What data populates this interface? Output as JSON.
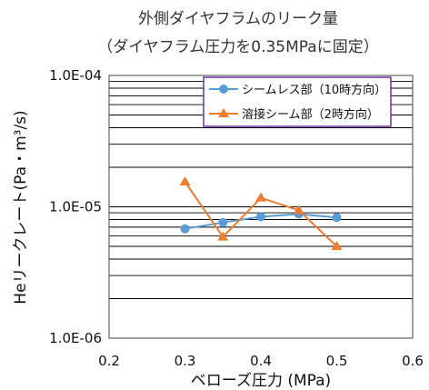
{
  "chart_data": {
    "type": "line",
    "title": "外側ダイヤフラムのリーク量",
    "subtitle": "（ダイヤフラム圧力を0.35MPaに固定）",
    "xlabel": "ベローズ圧力 (MPa)",
    "ylabel": "Heリークレート(Pa・m³/s)",
    "xlim": [
      0.2,
      0.6
    ],
    "ylim": [
      1e-06,
      0.0001
    ],
    "yscale": "log",
    "grid": true,
    "legend_position": "top-right",
    "x_tick_labels": [
      "0.2",
      "0.3",
      "0.4",
      "0.5",
      "0.6"
    ],
    "y_tick_labels": [
      "1.0E-06",
      "1.0E-05",
      "1.0E-04"
    ],
    "series": [
      {
        "name": "シームレス部（10時方向）",
        "color": "#5b9bd5",
        "marker": "circle",
        "x": [
          0.3,
          0.35,
          0.4,
          0.45,
          0.5
        ],
        "values": [
          6.8e-06,
          7.6e-06,
          8.4e-06,
          8.8e-06,
          8.3e-06
        ]
      },
      {
        "name": "溶接シーム部（2時方向）",
        "color": "#ed7d31",
        "marker": "triangle",
        "x": [
          0.3,
          0.35,
          0.4,
          0.45,
          0.5
        ],
        "values": [
          1.55e-05,
          5.9e-06,
          1.17e-05,
          9.4e-06,
          5e-06
        ]
      }
    ]
  }
}
